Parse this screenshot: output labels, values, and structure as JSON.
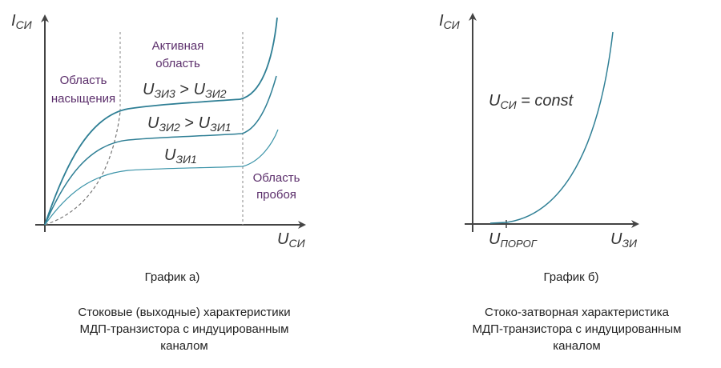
{
  "graph_a": {
    "y_axis_label": {
      "main": "I",
      "sub": "СИ"
    },
    "x_axis_label": {
      "main": "U",
      "sub": "СИ"
    },
    "regions": {
      "saturation": [
        "Область",
        "насыщения"
      ],
      "active": [
        "Активная",
        "область"
      ],
      "breakdown": [
        "Область",
        "пробоя"
      ]
    },
    "curve_labels": {
      "top": {
        "a": "U",
        "a_sub": "ЗИ3",
        "op": " > ",
        "b": "U",
        "b_sub": "ЗИ2"
      },
      "middle": {
        "a": "U",
        "a_sub": "ЗИ2",
        "op": " > ",
        "b": "U",
        "b_sub": "ЗИ1"
      },
      "bottom": {
        "a": "U",
        "a_sub": "ЗИ1"
      }
    },
    "title": "График  а)",
    "caption": [
      "Стоковые (выходные) характеристики",
      "МДП-транзистора с индуцированным",
      "каналом"
    ]
  },
  "graph_b": {
    "y_axis_label": {
      "main": "I",
      "sub": "СИ"
    },
    "x_axis_label": {
      "main": "U",
      "sub": "ЗИ"
    },
    "threshold_label": {
      "main": "U",
      "sub": "ПОРОГ"
    },
    "condition": "U",
    "condition_sub": "СИ",
    "condition_rest": " = const",
    "title": "График  б)",
    "caption": [
      "Стоко-затворная характеристика",
      "МДП-транзистора с индуцированным",
      "каналом"
    ]
  },
  "colors": {
    "curve": "#2f7f95",
    "axis": "#444444",
    "region_text": "#5b2e6b",
    "guide": "#999999"
  }
}
